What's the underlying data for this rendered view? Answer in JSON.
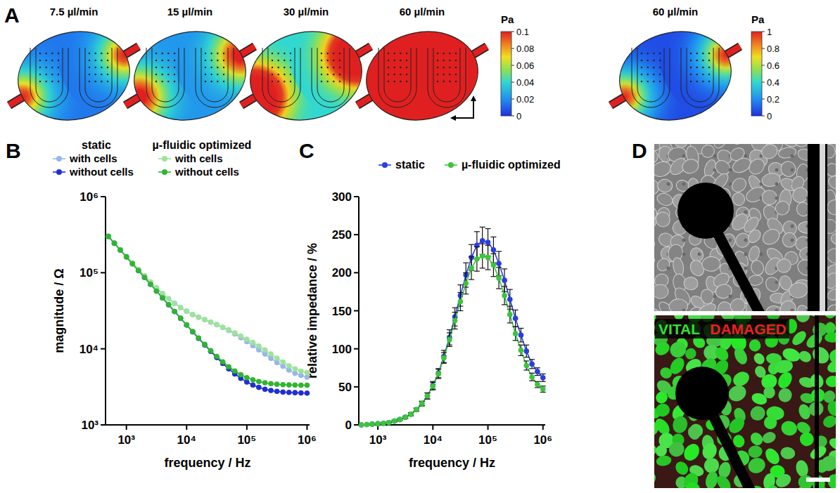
{
  "chart_data": [
    {
      "type": "heatmap",
      "panel_label": "A",
      "groups": [
        {
          "colorbar": {
            "label": "Pa",
            "lim": [
              0,
              0.1
            ],
            "ticks": [
              0,
              0.02,
              0.04,
              0.06,
              0.08,
              0.1
            ]
          },
          "maps": [
            {
              "title": "7.5 µl/min",
              "field": {
                "center": 0.015,
                "inlet": 0.12
              }
            },
            {
              "title": "15 µl/min",
              "field": {
                "center": 0.022,
                "inlet": 0.15
              }
            },
            {
              "title": "30 µl/min",
              "field": {
                "center": 0.04,
                "inlet": 0.3
              }
            },
            {
              "title": "60 µl/min",
              "field": {
                "center": 0.12,
                "inlet": 0.5
              }
            }
          ]
        },
        {
          "colorbar": {
            "label": "Pa",
            "lim": [
              0,
              1
            ],
            "ticks": [
              0,
              0.2,
              0.4,
              0.6,
              0.8,
              1
            ]
          },
          "maps": [
            {
              "title": "60 µl/min",
              "field": {
                "center": 0.06,
                "inlet": 1.2
              }
            }
          ]
        }
      ]
    },
    {
      "type": "line",
      "panel_label": "B",
      "log": true,
      "grid": false,
      "legend": "top",
      "marker": "circle",
      "line_style": "solid",
      "xlabel": "frequency /  Hz",
      "ylabel": "magnitude / Ω",
      "x": [
        500,
        630,
        790,
        1000,
        1260,
        1580,
        2000,
        2510,
        3160,
        3980,
        5010,
        6310,
        7940,
        10000,
        12600,
        15800,
        20000,
        25100,
        31600,
        39800,
        50100,
        63100,
        79400,
        100000,
        126000,
        158000,
        200000,
        251000,
        316000,
        398000,
        501000,
        631000,
        794000,
        1000000
      ],
      "xlim": [
        450,
        1100000
      ],
      "xticks": [
        {
          "value": 1000,
          "label": "10³"
        },
        {
          "value": 10000,
          "label": "10⁴"
        },
        {
          "value": 100000,
          "label": "10⁵"
        },
        {
          "value": 1000000,
          "label": "10⁶"
        }
      ],
      "ylim": [
        1000,
        1000000
      ],
      "yticks": [
        {
          "value": 1000,
          "label": "10³"
        },
        {
          "value": 10000,
          "label": "10⁴"
        },
        {
          "value": 100000,
          "label": "10⁵"
        },
        {
          "value": 1000000,
          "label": "10⁶"
        }
      ],
      "series": [
        {
          "name": "with cells",
          "group": "static",
          "color": "#98b6ea",
          "values": [
            300000,
            245100,
            200300,
            163600,
            133700,
            109800,
            91020,
            75440,
            63070,
            53170,
            45540,
            39540,
            34720,
            31190,
            28120,
            26030,
            24170,
            22410,
            20740,
            19090,
            17410,
            15710,
            13990,
            12430,
            11010,
            9690,
            8540,
            7500,
            6610,
            5890,
            5260,
            4760,
            4470,
            4240
          ]
        },
        {
          "name": "without cells",
          "group": "static",
          "color": "#1f2fd0",
          "values": [
            300000,
            243900,
            198300,
            161200,
            131100,
            106600,
            86690,
            70500,
            57340,
            46640,
            37950,
            30890,
            25160,
            20520,
            16740,
            13700,
            11240,
            9260,
            7680,
            6430,
            5440,
            4680,
            4090,
            3660,
            3340,
            3110,
            2940,
            2830,
            2760,
            2700,
            2670,
            2650,
            2630,
            2620
          ]
        },
        {
          "name": "with cells",
          "group": "µ-fluidic optimized",
          "color": "#9de39a",
          "values": [
            300000,
            245100,
            200300,
            163650,
            133760,
            109850,
            91050,
            75470,
            63120,
            53230,
            45600,
            39630,
            34850,
            31140,
            28170,
            26040,
            24230,
            22470,
            20820,
            19290,
            17780,
            16210,
            14710,
            13380,
            12110,
            10870,
            9660,
            8540,
            7530,
            6700,
            5970,
            5440,
            5090,
            4870
          ]
        },
        {
          "name": "without cells",
          "group": "µ-fluidic optimized",
          "color": "#2fb52f",
          "values": [
            300000,
            243900,
            198300,
            161200,
            131100,
            106700,
            86710,
            70530,
            57380,
            46690,
            38000,
            30960,
            25250,
            20620,
            16870,
            13850,
            11430,
            9480,
            7950,
            6740,
            5810,
            5100,
            4570,
            4180,
            3910,
            3710,
            3580,
            3490,
            3420,
            3380,
            3350,
            3340,
            3320,
            3320
          ]
        }
      ]
    },
    {
      "type": "line",
      "panel_label": "C",
      "log": "x",
      "grid": false,
      "legend": "top",
      "marker": "circle",
      "line_style": "solid",
      "xlabel": "frequency /  Hz",
      "ylabel": "relative impedance / %",
      "x": [
        500,
        630,
        790,
        1000,
        1260,
        1580,
        2000,
        2510,
        3160,
        3980,
        5010,
        6310,
        7940,
        10000,
        12600,
        15800,
        20000,
        25100,
        31600,
        39800,
        50100,
        63100,
        79400,
        100000,
        126000,
        158000,
        200000,
        251000,
        316000,
        398000,
        501000,
        631000,
        794000,
        1000000
      ],
      "xlim": [
        450,
        1100000
      ],
      "xticks": [
        {
          "value": 1000,
          "label": "10³"
        },
        {
          "value": 10000,
          "label": "10⁴"
        },
        {
          "value": 100000,
          "label": "10⁵"
        },
        {
          "value": 1000000,
          "label": "10⁶"
        }
      ],
      "ylim": [
        0,
        300
      ],
      "yticks": [
        0,
        50,
        100,
        150,
        200,
        250,
        300
      ],
      "series": [
        {
          "name": "static",
          "color": "#2a3ee0",
          "values": [
            0,
            0.5,
            1,
            1.5,
            2,
            3,
            5,
            7,
            10,
            14,
            20,
            28,
            38,
            52,
            68,
            90,
            115,
            142,
            170,
            197,
            220,
            236,
            242,
            240,
            230,
            212,
            190,
            165,
            140,
            118,
            97,
            80,
            70,
            62
          ],
          "errors": [
            0,
            0,
            0,
            0,
            0.5,
            0.5,
            1,
            1,
            1.5,
            2,
            2,
            3,
            4,
            5,
            6,
            8,
            10,
            12,
            14,
            16,
            17,
            18,
            18,
            18,
            17,
            16,
            15,
            13,
            11,
            9,
            8,
            6,
            5,
            5
          ]
        },
        {
          "name": "µ-fluidic optimized",
          "color": "#3cc43c",
          "values": [
            0,
            0.5,
            1,
            1.5,
            2,
            3,
            5,
            7,
            10,
            14,
            20,
            28,
            38,
            51,
            67,
            88,
            112,
            137,
            162,
            186,
            206,
            218,
            222,
            220,
            210,
            193,
            170,
            145,
            120,
            98,
            78,
            63,
            53,
            47
          ],
          "errors": [
            0,
            0,
            0,
            0,
            0.5,
            0.5,
            1,
            1,
            1.5,
            2,
            2,
            3,
            4,
            5,
            6,
            7,
            9,
            11,
            12,
            14,
            15,
            16,
            16,
            16,
            15,
            14,
            12,
            11,
            9,
            7,
            6,
            5,
            4,
            4
          ]
        }
      ]
    }
  ],
  "micrographs": {
    "panel_label": "D",
    "labels": [
      {
        "text": "VITAL",
        "color": "#35e035"
      },
      {
        "text": "DAMAGED",
        "color": "#ee2020"
      }
    ]
  }
}
